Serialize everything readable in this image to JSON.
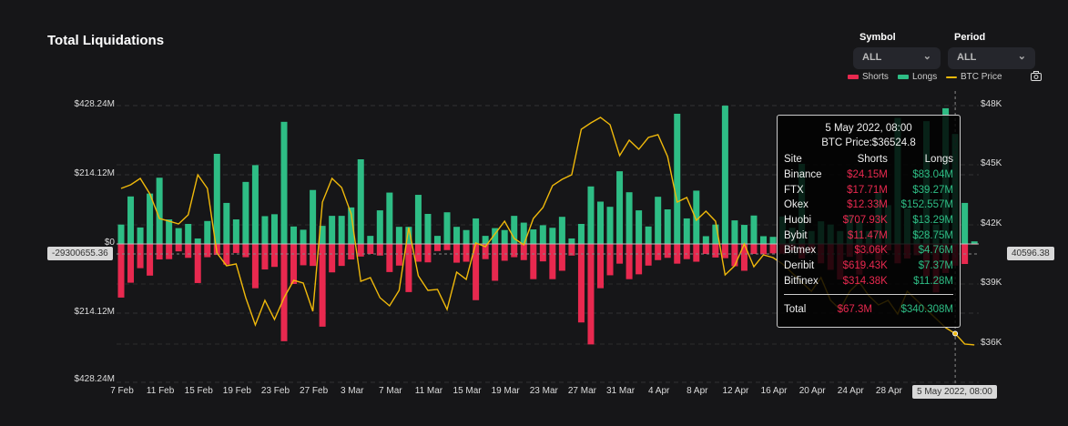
{
  "title": "Total Liquidations",
  "filters": {
    "symbol_label": "Symbol",
    "symbol_value": "ALL",
    "period_label": "Period",
    "period_value": "ALL"
  },
  "colors": {
    "shorts": "#e8294f",
    "longs": "#2ebd85",
    "price": "#f0b90b",
    "background": "#161618"
  },
  "crosshair": {
    "left_value": "-29300655.36",
    "right_value": "40596.38",
    "date_label": "5 May 2022, 08:00"
  },
  "tooltip": {
    "date": "5 May 2022, 08:00",
    "price": "BTC Price:$36524.8",
    "headers": [
      "Site",
      "Shorts",
      "Longs"
    ],
    "rows": [
      [
        "Binance",
        "$24.15M",
        "$83.04M"
      ],
      [
        "FTX",
        "$17.71M",
        "$39.27M"
      ],
      [
        "Okex",
        "$12.33M",
        "$152.557M"
      ],
      [
        "Huobi",
        "$707.93K",
        "$13.29M"
      ],
      [
        "Bybit",
        "$11.47M",
        "$28.75M"
      ],
      [
        "Bitmex",
        "$3.06K",
        "$4.76M"
      ],
      [
        "Deribit",
        "$619.43K",
        "$7.37M"
      ],
      [
        "Bitfinex",
        "$314.38K",
        "$11.28M"
      ]
    ],
    "total": [
      "Total",
      "$67.3M",
      "$340.308M"
    ]
  },
  "chart_data": {
    "type": "bar",
    "title": "Total Liquidations",
    "legend": [
      "Shorts",
      "Longs",
      "BTC Price"
    ],
    "legend_position": "top-right",
    "x_tick_labels": [
      "7 Feb",
      "11 Feb",
      "15 Feb",
      "19 Feb",
      "23 Feb",
      "27 Feb",
      "3 Mar",
      "7 Mar",
      "11 Mar",
      "15 Mar",
      "19 Mar",
      "23 Mar",
      "27 Mar",
      "31 Mar",
      "4 Apr",
      "8 Apr",
      "12 Apr",
      "16 Apr",
      "20 Apr",
      "24 Apr",
      "28 Apr"
    ],
    "x_tick_every_days": 4,
    "start_date": "7 Feb 2022",
    "left_axis": {
      "ticks": [
        "$428.24M",
        "$214.12M",
        "$0",
        "$214.12M",
        "$428.24M"
      ],
      "range_musd": [
        -428.24,
        428.24
      ]
    },
    "right_axis": {
      "ticks": [
        "$48K",
        "$45K",
        "$42K",
        "$39K",
        "$36K"
      ],
      "range": [
        36000,
        48000
      ]
    },
    "grid": true,
    "series": [
      {
        "name": "Longs",
        "unit": "M USD",
        "values": [
          60,
          147,
          51,
          156,
          205,
          76,
          49,
          62,
          17,
          71,
          279,
          127,
          76,
          192,
          244,
          86,
          92,
          378,
          54,
          44,
          167,
          56,
          87,
          87,
          113,
          262,
          25,
          104,
          159,
          53,
          53,
          152,
          93,
          25,
          98,
          53,
          43,
          79,
          25,
          49,
          43,
          87,
          66,
          45,
          58,
          50,
          84,
          17,
          62,
          178,
          131,
          115,
          225,
          160,
          104,
          54,
          146,
          107,
          403,
          79,
          165,
          24,
          60,
          428,
          73,
          59,
          88,
          24,
          22,
          85,
          50,
          248,
          40,
          70,
          60,
          40,
          90,
          70,
          40,
          160,
          120,
          390,
          110,
          75,
          380,
          60,
          420,
          340.3,
          127,
          8
        ]
      },
      {
        "name": "Shorts",
        "unit": "M USD",
        "values": [
          166,
          120,
          75,
          98,
          48,
          47,
          23,
          43,
          121,
          41,
          34,
          64,
          28,
          41,
          137,
          79,
          71,
          301,
          124,
          66,
          68,
          256,
          88,
          68,
          48,
          39,
          31,
          36,
          87,
          67,
          149,
          55,
          57,
          22,
          19,
          58,
          55,
          174,
          47,
          114,
          52,
          41,
          50,
          109,
          54,
          109,
          83,
          36,
          243,
          311,
          137,
          97,
          61,
          109,
          94,
          67,
          50,
          43,
          61,
          47,
          55,
          31,
          42,
          44,
          69,
          83,
          31,
          32,
          29,
          30,
          20,
          45,
          25,
          60,
          80,
          110,
          40,
          95,
          30,
          50,
          20,
          60,
          45,
          35,
          100,
          150,
          90,
          67.3,
          62,
          2
        ]
      },
      {
        "name": "BTC Price",
        "unit": "USD",
        "values": [
          43832,
          44016,
          44336,
          43558,
          42321,
          42184,
          42046,
          42505,
          44519,
          43832,
          40581,
          39940,
          40031,
          38336,
          36962,
          38199,
          37237,
          38336,
          39207,
          39069,
          37650,
          43146,
          44336,
          43878,
          42550,
          39161,
          39344,
          38336,
          37925,
          38703,
          41863,
          39436,
          38703,
          38749,
          37741,
          39619,
          39253,
          41085,
          40902,
          41543,
          42184,
          41313,
          40993,
          42321,
          42871,
          43972,
          44291,
          44519,
          46809,
          47130,
          47405,
          47038,
          45481,
          46260,
          45801,
          46397,
          46535,
          45436,
          43146,
          43374,
          42229,
          42687,
          42184,
          39481,
          39940,
          41039,
          39894,
          40489,
          40352,
          40031,
          39573,
          39115,
          38657,
          39344,
          38199,
          37741,
          38657,
          39115,
          38428,
          37971,
          38199,
          37512,
          38657,
          38199,
          37741,
          37283,
          36825,
          36525,
          36001,
          35955
        ]
      }
    ]
  }
}
